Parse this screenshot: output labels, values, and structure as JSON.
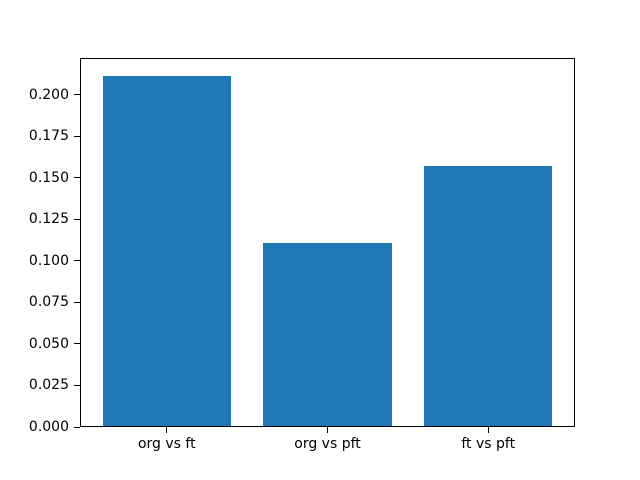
{
  "figure": {
    "background_color": "#ffffff"
  },
  "chart_data": {
    "type": "bar",
    "title": "",
    "xlabel": "",
    "ylabel": "",
    "categories": [
      "org vs ft",
      "org vs pft",
      "ft vs pft"
    ],
    "values": [
      0.211,
      0.111,
      0.157
    ],
    "ylim": [
      0,
      0.222
    ],
    "xlim": [
      -0.54,
      2.54
    ],
    "bar_width": 0.8,
    "yticks": [
      0.0,
      0.025,
      0.05,
      0.075,
      0.1,
      0.125,
      0.15,
      0.175,
      0.2
    ],
    "ytick_labels": [
      "0.000",
      "0.025",
      "0.050",
      "0.075",
      "0.100",
      "0.125",
      "0.150",
      "0.175",
      "0.200"
    ],
    "grid": false,
    "legend": null,
    "bar_color": "#1f77b4",
    "axis_color": "#000000",
    "text_color": "#000000",
    "plot_background": "#ffffff"
  }
}
